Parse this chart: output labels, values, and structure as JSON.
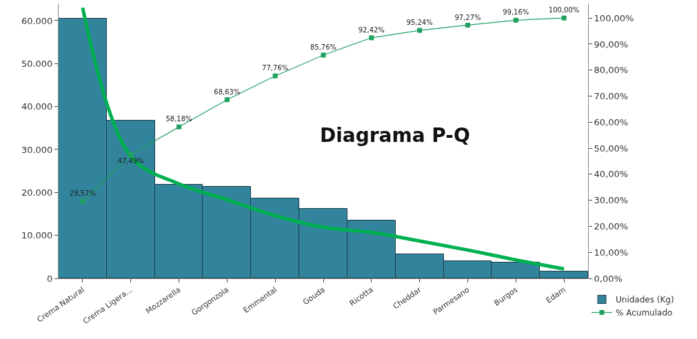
{
  "chart_data": {
    "type": "bar",
    "title": "Diagrama P-Q",
    "categories": [
      "Crema Natural",
      "Crema Ligera...",
      "Mozzarella",
      "Gorgonzola",
      "Emmental",
      "Gouda",
      "Ricotta",
      "Cheddar",
      "Parmesano",
      "Burgos",
      "Edam"
    ],
    "series": [
      {
        "name": "Unidades (Kg)",
        "color": "#31849b",
        "values": [
          60500,
          36700,
          21800,
          21300,
          18600,
          16200,
          13500,
          5600,
          4000,
          3700,
          1600
        ]
      },
      {
        "name": "% Acumulado",
        "type": "line",
        "axis": "y2",
        "color": "#1fa160",
        "marker": "square",
        "values": [
          29.57,
          47.49,
          58.18,
          68.63,
          77.76,
          85.76,
          92.42,
          95.24,
          97.27,
          99.16,
          100.0
        ],
        "value_labels": [
          "29,57%",
          "47,49%",
          "58,18%",
          "68,63%",
          "77,76%",
          "85,76%",
          "92,42%",
          "95,24%",
          "97,27%",
          "99,16%",
          "100,00%"
        ]
      },
      {
        "type": "line",
        "color": "#00b050",
        "marker": "none",
        "values": [
          63000,
          28400,
          22000,
          18300,
          14600,
          11900,
          10700,
          8700,
          6600,
          4300,
          2200
        ]
      }
    ],
    "ylim": [
      0,
      64000
    ],
    "yticks": [
      {
        "value": 0,
        "label": "0"
      },
      {
        "value": 10000,
        "label": "10.000"
      },
      {
        "value": 20000,
        "label": "20.000"
      },
      {
        "value": 30000,
        "label": "30.000"
      },
      {
        "value": 40000,
        "label": "40.000"
      },
      {
        "value": 50000,
        "label": "50.000"
      },
      {
        "value": 60000,
        "label": "60.000"
      }
    ],
    "y2lim": [
      0,
      105.6
    ],
    "y2ticks": [
      {
        "value": 0,
        "label": "0,00%"
      },
      {
        "value": 10,
        "label": "10,00%"
      },
      {
        "value": 20,
        "label": "20,00%"
      },
      {
        "value": 30,
        "label": "30,00%"
      },
      {
        "value": 40,
        "label": "40,00%"
      },
      {
        "value": 50,
        "label": "50,00%"
      },
      {
        "value": 60,
        "label": "60,00%"
      },
      {
        "value": 70,
        "label": "70,00%"
      },
      {
        "value": 80,
        "label": "80,00%"
      },
      {
        "value": 90,
        "label": "90,00%"
      },
      {
        "value": 100,
        "label": "100,00%"
      }
    ],
    "legend": "bottom right"
  }
}
